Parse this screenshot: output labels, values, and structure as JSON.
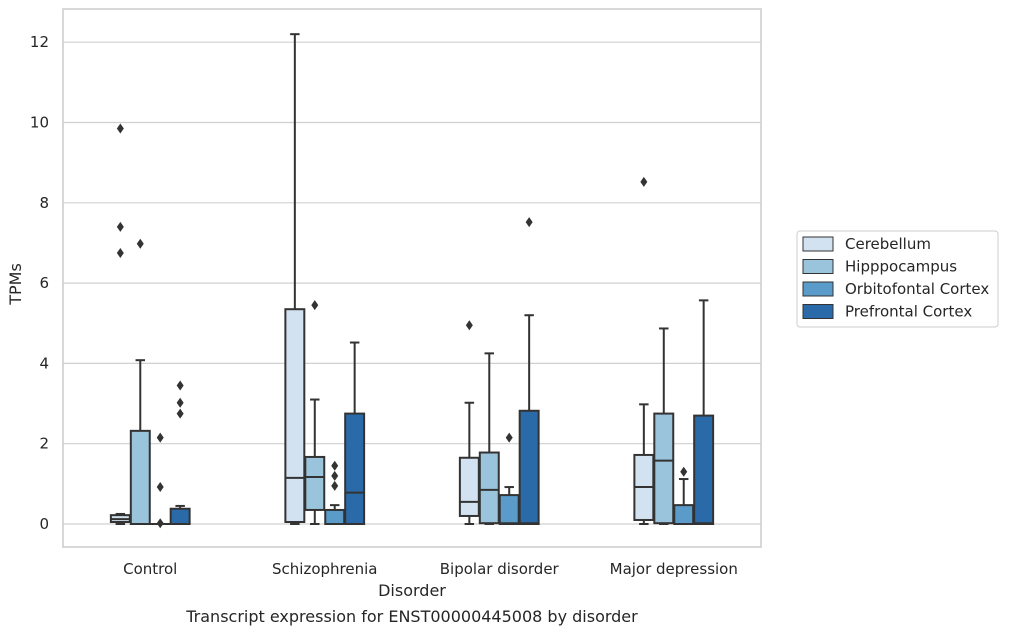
{
  "chart_data": {
    "type": "box",
    "title": "",
    "caption": "Transcript expression for ENST00000445008 by disorder",
    "xlabel": "Disorder",
    "ylabel": "TPMs",
    "ylim": [
      -0.6,
      12.75
    ],
    "yticks": [
      0,
      2,
      4,
      6,
      8,
      10,
      12
    ],
    "grid": "horizontal",
    "legend_position": "right",
    "categories": [
      "Control",
      "Schizophrenia",
      "Bipolar disorder",
      "Major depression"
    ],
    "series": [
      {
        "name": "Cerebellum",
        "color": "#d2e2f1",
        "boxes": [
          {
            "whislo": 0.0,
            "q1": 0.05,
            "med": 0.12,
            "q3": 0.22,
            "whishi": 0.25,
            "fliers": [
              6.75,
              7.4,
              9.85
            ]
          },
          {
            "whislo": 0.0,
            "q1": 0.05,
            "med": 1.15,
            "q3": 5.35,
            "whishi": 12.2,
            "fliers": []
          },
          {
            "whislo": 0.0,
            "q1": 0.2,
            "med": 0.55,
            "q3": 1.65,
            "whishi": 3.02,
            "fliers": [
              4.95
            ]
          },
          {
            "whislo": 0.0,
            "q1": 0.1,
            "med": 0.92,
            "q3": 1.72,
            "whishi": 2.98,
            "fliers": [
              8.52
            ]
          }
        ]
      },
      {
        "name": "Hipppocampus",
        "color": "#9ac3dc",
        "boxes": [
          {
            "whislo": 0.0,
            "q1": 0.0,
            "med": 0.0,
            "q3": 2.32,
            "whishi": 4.08,
            "fliers": [
              6.98
            ]
          },
          {
            "whislo": 0.0,
            "q1": 0.35,
            "med": 1.17,
            "q3": 1.67,
            "whishi": 3.1,
            "fliers": [
              5.45
            ]
          },
          {
            "whislo": 0.0,
            "q1": 0.02,
            "med": 0.85,
            "q3": 1.78,
            "whishi": 4.25,
            "fliers": []
          },
          {
            "whislo": 0.0,
            "q1": 0.02,
            "med": 1.58,
            "q3": 2.75,
            "whishi": 4.87,
            "fliers": []
          }
        ]
      },
      {
        "name": "Orbitofontal Cortex",
        "color": "#5a9bc9",
        "boxes": [
          {
            "whislo": 0.0,
            "q1": 0.0,
            "med": 0.0,
            "q3": 0.0,
            "whishi": 0.0,
            "fliers": [
              0.02,
              0.92,
              2.15
            ]
          },
          {
            "whislo": 0.0,
            "q1": 0.0,
            "med": 0.0,
            "q3": 0.35,
            "whishi": 0.47,
            "fliers": [
              0.95,
              1.2,
              1.45
            ]
          },
          {
            "whislo": 0.0,
            "q1": 0.0,
            "med": 0.02,
            "q3": 0.72,
            "whishi": 0.92,
            "fliers": [
              2.15
            ]
          },
          {
            "whislo": 0.0,
            "q1": 0.0,
            "med": 0.0,
            "q3": 0.47,
            "whishi": 1.12,
            "fliers": [
              1.3
            ]
          }
        ]
      },
      {
        "name": "Prefrontal Cortex",
        "color": "#2b6aa8",
        "boxes": [
          {
            "whislo": 0.0,
            "q1": 0.0,
            "med": 0.0,
            "q3": 0.38,
            "whishi": 0.45,
            "fliers": [
              2.75,
              3.02,
              3.45
            ]
          },
          {
            "whislo": 0.0,
            "q1": 0.0,
            "med": 0.78,
            "q3": 2.75,
            "whishi": 4.52,
            "fliers": []
          },
          {
            "whislo": 0.0,
            "q1": 0.0,
            "med": 0.02,
            "q3": 2.82,
            "whishi": 5.2,
            "fliers": [
              7.52
            ]
          },
          {
            "whislo": 0.0,
            "q1": 0.0,
            "med": 0.02,
            "q3": 2.7,
            "whishi": 5.57,
            "fliers": []
          }
        ]
      }
    ],
    "colors": {
      "grid": "#d0d0d0",
      "frame": "#cccccc",
      "line": "#333333"
    }
  }
}
